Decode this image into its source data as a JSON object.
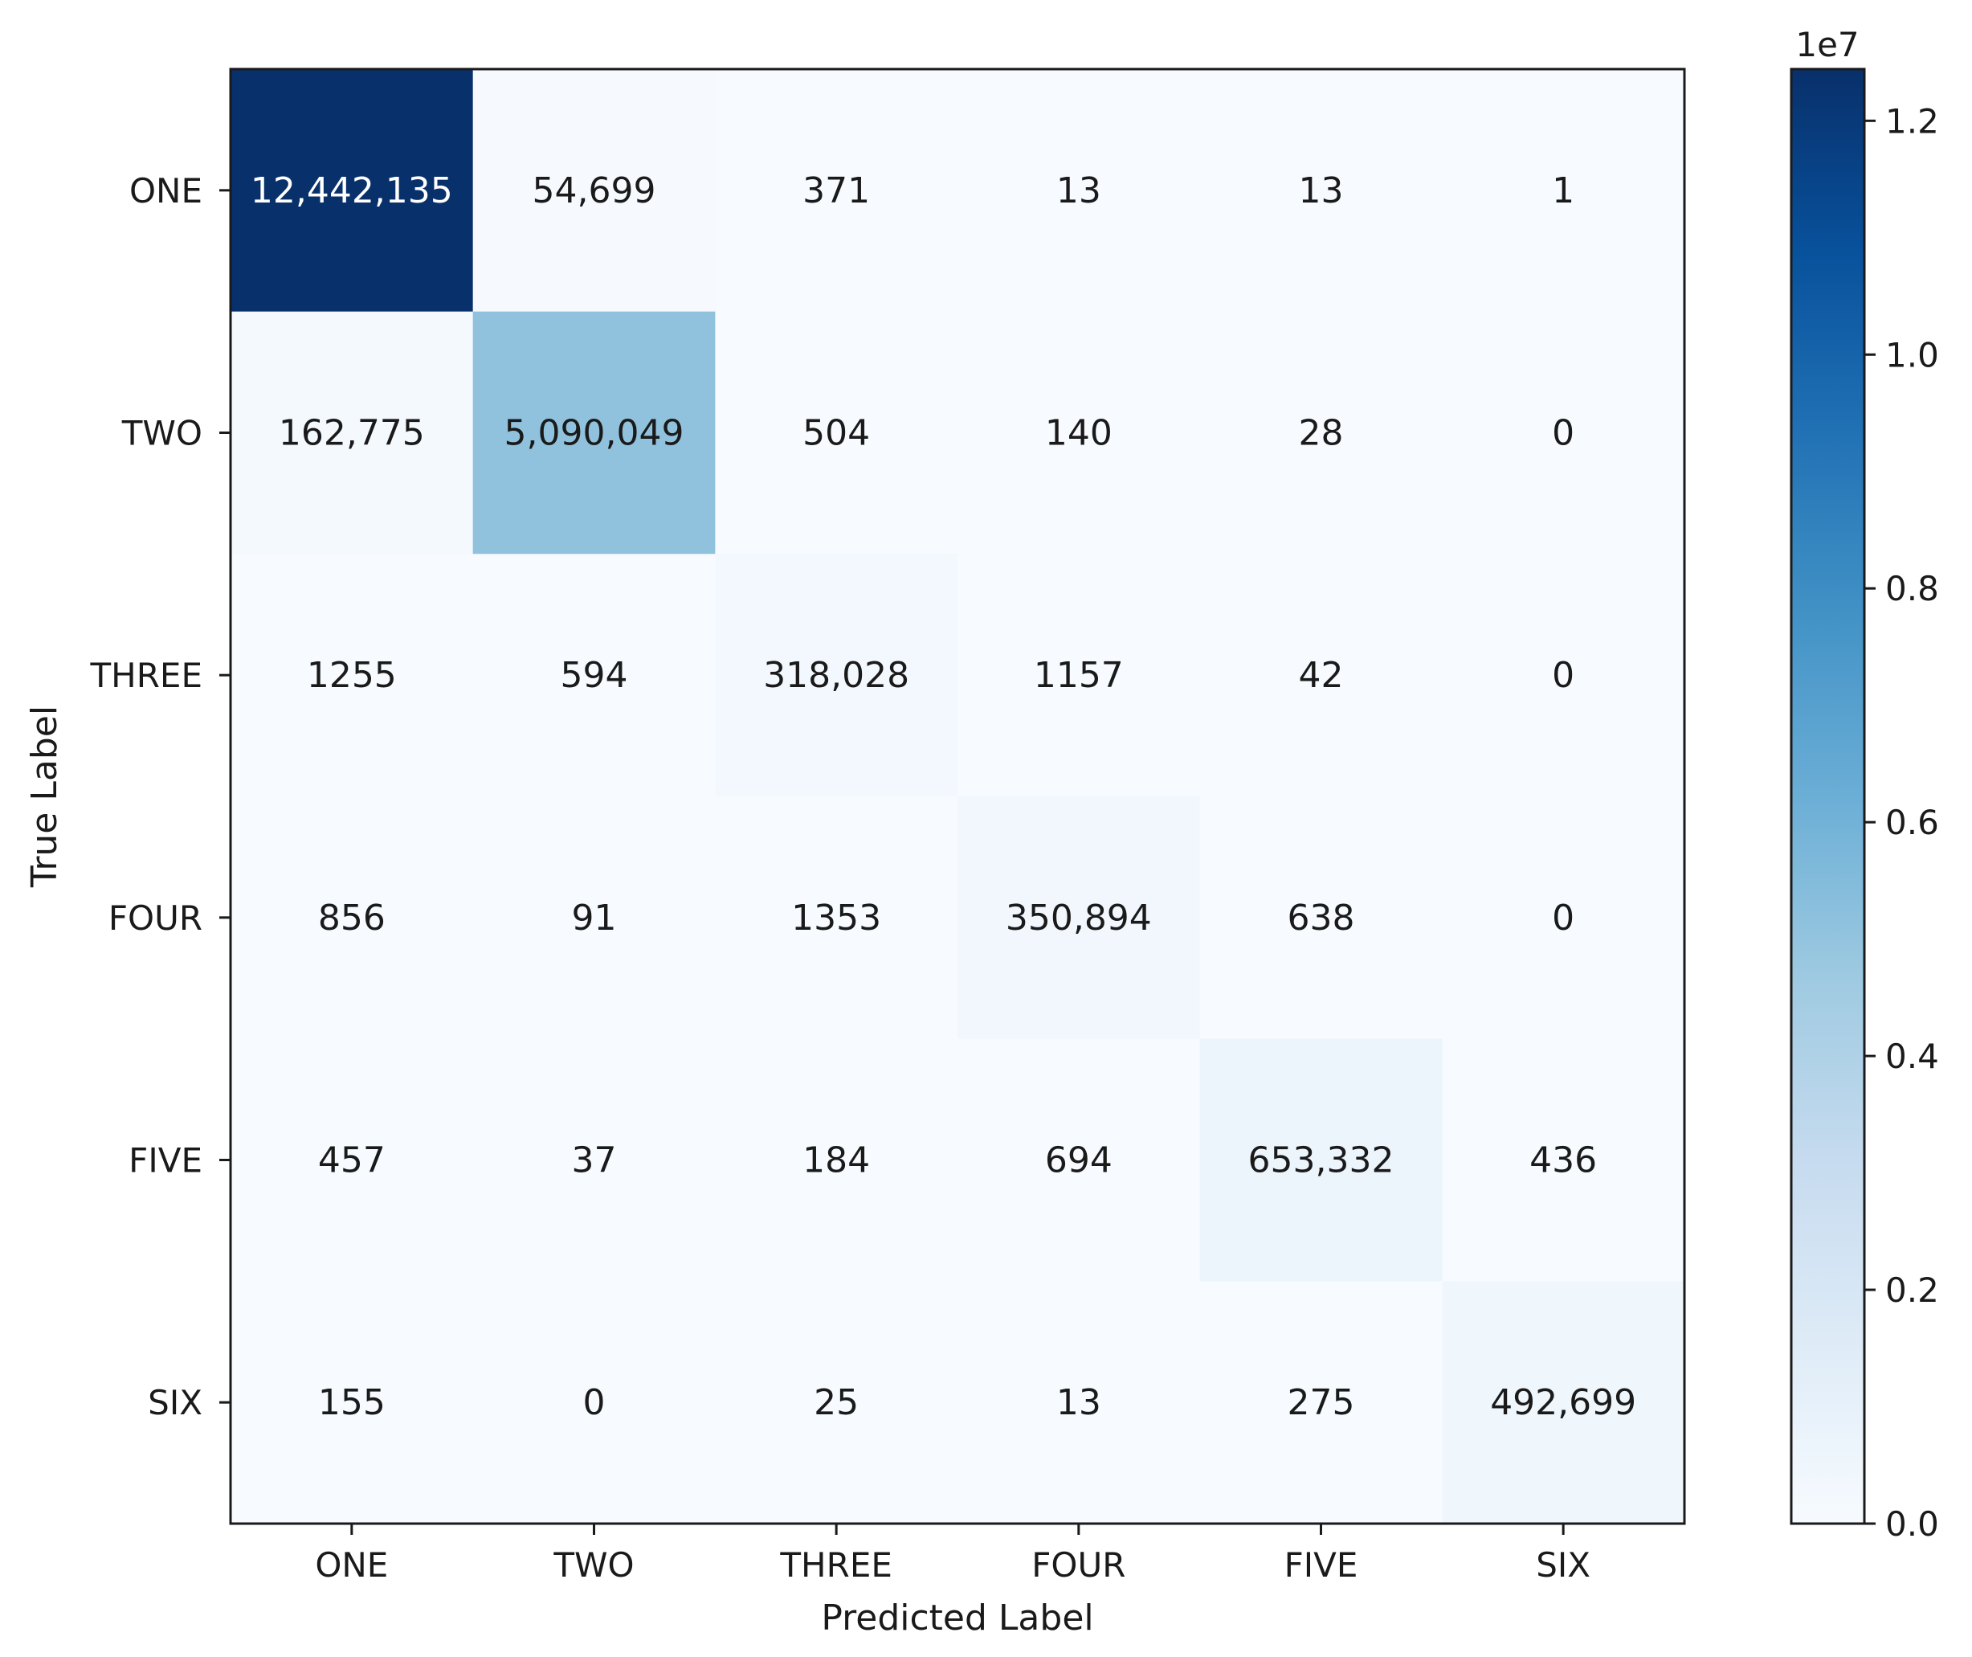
{
  "chart_data": {
    "type": "heatmap",
    "title": "",
    "xlabel": "Predicted Label",
    "ylabel": "True Label",
    "x_categories": [
      "ONE",
      "TWO",
      "THREE",
      "FOUR",
      "FIVE",
      "SIX"
    ],
    "y_categories": [
      "ONE",
      "TWO",
      "THREE",
      "FOUR",
      "FIVE",
      "SIX"
    ],
    "values": [
      [
        12442135,
        54699,
        371,
        13,
        13,
        1
      ],
      [
        162775,
        5090049,
        504,
        140,
        28,
        0
      ],
      [
        1255,
        594,
        318028,
        1157,
        42,
        0
      ],
      [
        856,
        91,
        1353,
        350894,
        638,
        0
      ],
      [
        457,
        37,
        184,
        694,
        653332,
        436
      ],
      [
        155,
        0,
        25,
        13,
        275,
        492699
      ]
    ],
    "cell_labels": [
      [
        "12,442,135",
        "54,699",
        "371",
        "13",
        "13",
        "1"
      ],
      [
        "162,775",
        "5,090,049",
        "504",
        "140",
        "28",
        "0"
      ],
      [
        "1255",
        "594",
        "318,028",
        "1157",
        "42",
        "0"
      ],
      [
        "856",
        "91",
        "1353",
        "350,894",
        "638",
        "0"
      ],
      [
        "457",
        "37",
        "184",
        "694",
        "653,332",
        "436"
      ],
      [
        "155",
        "0",
        "25",
        "13",
        "275",
        "492,699"
      ]
    ],
    "colormap": "Blues",
    "colorbar": {
      "range": [
        0,
        12442135
      ],
      "exponent_label": "1e7",
      "ticks": [
        0.0,
        0.2,
        0.4,
        0.6,
        0.8,
        1.0,
        1.2
      ],
      "tick_labels": [
        "0.0",
        "0.2",
        "0.4",
        "0.6",
        "0.8",
        "1.0",
        "1.2"
      ],
      "tick_scale": 10000000
    }
  }
}
